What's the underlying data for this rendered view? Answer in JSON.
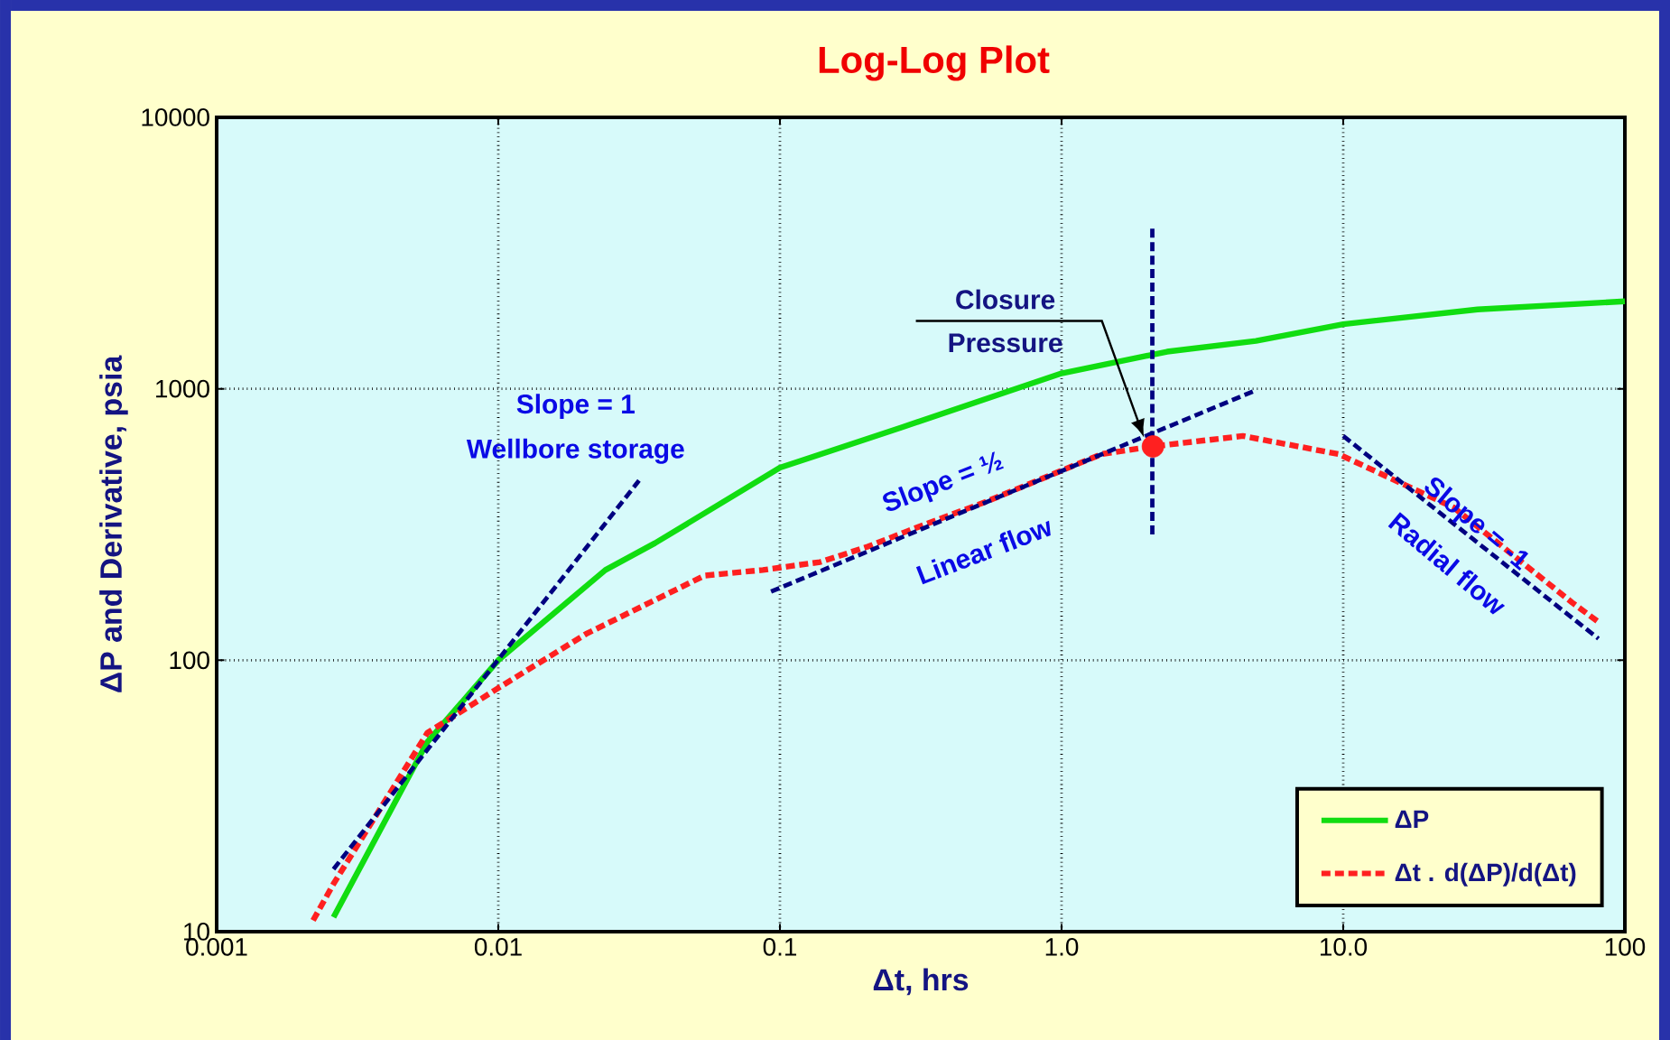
{
  "chart_data": {
    "type": "line",
    "title": "Log-Log Plot",
    "xlabel": "Δt, hrs",
    "ylabel": "ΔP and Derivative, psia",
    "log": "xy",
    "grid": true,
    "legend": "bottom right",
    "xlim": [
      0.001,
      100
    ],
    "ylim": [
      10,
      10000
    ],
    "xticks": [
      0.001,
      0.01,
      0.1,
      {
        "value": 1,
        "label": "1.0"
      },
      {
        "value": 10,
        "label": "10.0"
      },
      100
    ],
    "yticks": [
      10,
      100,
      1000,
      10000
    ],
    "series": [
      {
        "name": "ΔP",
        "color": "#11dd11",
        "line_style": "solid",
        "marker": "none",
        "x": [
          0.0026,
          0.0056,
          0.01,
          0.024,
          0.036,
          0.1,
          0.27,
          1.0,
          2.37,
          4.9,
          10,
          30,
          100
        ],
        "values": [
          11.3,
          50,
          100,
          215,
          270,
          512,
          720,
          1140,
          1370,
          1500,
          1730,
          1960,
          2100
        ]
      },
      {
        "name": "Δt . d(ΔP)/d(Δt)",
        "color": "#ff2020",
        "line_style": "dashed",
        "marker": "none",
        "x": [
          0.0022,
          0.0026,
          0.0056,
          0.01,
          0.0205,
          0.054,
          0.087,
          0.139,
          0.205,
          0.286,
          0.54,
          1.39,
          2.11,
          4.4,
          9.6,
          24.7,
          65,
          80
        ],
        "values": [
          11,
          15,
          54,
          79,
          125,
          205,
          215,
          230,
          262,
          300,
          384,
          575,
          613,
          670,
          575,
          365,
          163,
          139
        ]
      },
      {
        "type": "line",
        "color": "#000080",
        "line_style": "dashed",
        "marker": "none",
        "x": [
          0.0026,
          0.0316
        ],
        "values": [
          17,
          459
        ]
      },
      {
        "type": "line",
        "color": "#000080",
        "line_style": "dashed",
        "marker": "none",
        "x": [
          0.093,
          4.87
        ],
        "values": [
          179,
          985
        ]
      },
      {
        "type": "line",
        "color": "#000080",
        "line_style": "dashed",
        "marker": "none",
        "x": [
          10,
          80.6
        ],
        "values": [
          670,
          120
        ]
      },
      {
        "type": "line",
        "color": "#000080",
        "line_style": "dashed",
        "marker": "none",
        "x": [
          2.1,
          2.1
        ],
        "values": [
          3890,
          282
        ]
      },
      {
        "type": "scatter",
        "color": "#ff2020",
        "marker": "circle",
        "x": [
          2.11
        ],
        "values": [
          613
        ]
      }
    ],
    "annotations": [
      "Slope = 1",
      "Wellbore storage",
      "Slope = ½",
      "Linear flow",
      "Slope = -1",
      "Radial flow",
      "Closure Pressure"
    ]
  }
}
